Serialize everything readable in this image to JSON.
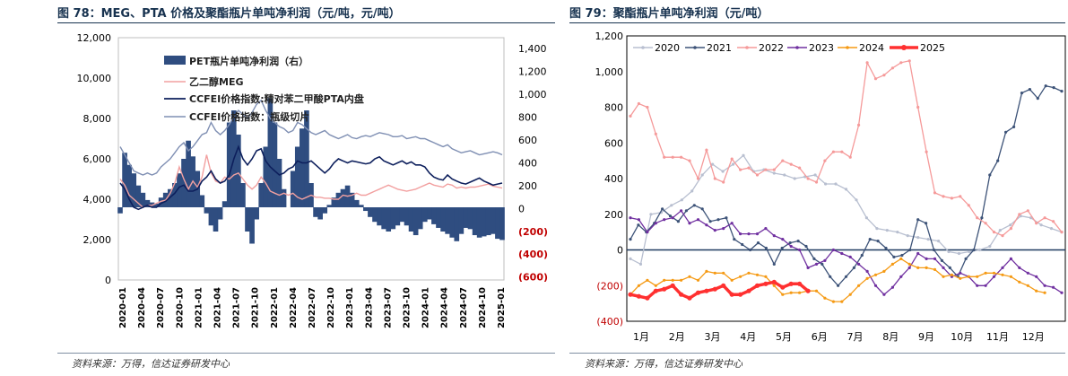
{
  "figures": {
    "fig78_title": "图 78：MEG、PTA 价格及聚酯瓶片单吨净利润（元/吨，元/吨）",
    "fig79_title": "图 79：聚酯瓶片单吨净利润（元/吨）",
    "source_left": "资料来源：万得，信达证券研发中心",
    "source_right": "资料来源：万得，信达证券研发中心"
  },
  "colors": {
    "navy": "#0d1f5c",
    "bar": "#2f4d80",
    "meg": "#f2a0a0",
    "chip": "#7f8fb3",
    "neg": "#c00000",
    "c2020": "#b8bfd0",
    "c2021": "#3d5378",
    "c2022": "#f59a9a",
    "c2023": "#7030a0",
    "c2024": "#f59a14",
    "c2025": "#ff3030"
  },
  "chart_data": [
    {
      "type": "line",
      "title": "MEG、PTA 价格及聚酯瓶片单吨净利润（元/吨，元/吨）",
      "left_axis": {
        "ticks": [
          "12,000",
          "10,000",
          "8,000",
          "6,000",
          "4,000",
          "2,000",
          "0"
        ],
        "range": [
          0,
          12000
        ]
      },
      "right_axis": {
        "ticks": [
          "1,400",
          "1,200",
          "1,000",
          "800",
          "600",
          "400",
          "200",
          "0",
          "(200)",
          "(400)",
          "(600)"
        ],
        "range": [
          -600,
          1400
        ]
      },
      "x_ticks": [
        "2020-01",
        "2020-04",
        "2020-07",
        "2020-10",
        "2021-01",
        "2021-04",
        "2021-07",
        "2021-10",
        "2022-01",
        "2022-04",
        "2022-07",
        "2022-10",
        "2023-01",
        "2023-04",
        "2023-07",
        "2023-10",
        "2024-01",
        "2024-04",
        "2024-07",
        "2024-10",
        "2025-01"
      ],
      "legend": [
        "PET瓶片单吨净利润（右）",
        "乙二醇MEG",
        "CCFEI价格指数:精对苯二甲酸PTA内盘",
        "CCFEI价格指数：瓶级切片"
      ],
      "series": [
        {
          "name": "PET瓶片单吨净利润（右）",
          "kind": "bar",
          "axis": "right",
          "values": [
            -50,
            450,
            350,
            280,
            180,
            120,
            60,
            40,
            30,
            80,
            120,
            150,
            200,
            280,
            400,
            550,
            420,
            300,
            100,
            -50,
            -150,
            -200,
            -100,
            50,
            700,
            800,
            600,
            200,
            -200,
            -300,
            -100,
            200,
            500,
            900,
            700,
            400,
            150,
            0,
            300,
            500,
            650,
            800,
            200,
            -80,
            -100,
            -50,
            20,
            80,
            120,
            150,
            180,
            120,
            60,
            20,
            -30,
            -80,
            -120,
            -150,
            -180,
            -200,
            -180,
            -150,
            -120,
            -150,
            -200,
            -230,
            -180,
            -120,
            -100,
            -140,
            -170,
            -200,
            -220,
            -250,
            -280,
            -220,
            -170,
            -180,
            -230,
            -250,
            -240,
            -230,
            -220,
            -260,
            -270
          ]
        },
        {
          "name": "乙二醇MEG",
          "kind": "line",
          "axis": "left",
          "values": [
            5000,
            4700,
            4200,
            4000,
            3800,
            3600,
            3700,
            3700,
            3800,
            3900,
            3950,
            4300,
            4800,
            5600,
            5000,
            4500,
            4900,
            4600,
            5100,
            6200,
            5300,
            4900,
            4800,
            5100,
            5000,
            5200,
            5300,
            5000,
            4700,
            4500,
            4700,
            5100,
            4800,
            4400,
            4300,
            4200,
            4300,
            4200,
            4300,
            4100,
            4000,
            4100,
            4200,
            4100,
            4100,
            4050,
            4050,
            4000,
            4000,
            4200,
            4150,
            4200,
            4300,
            4200,
            4200,
            4300,
            4400,
            4500,
            4600,
            4700,
            4600,
            4500,
            4450,
            4400,
            4450,
            4500,
            4600,
            4700,
            4800,
            4700,
            4650,
            4600,
            4750,
            4700,
            4550,
            4600,
            4550,
            4600,
            4600,
            4650,
            4700,
            4750,
            4650,
            4600,
            4550
          ]
        },
        {
          "name": "CCFEI价格指数:精对苯二甲酸PTA内盘",
          "kind": "line",
          "axis": "left",
          "values": [
            4800,
            4500,
            4000,
            3600,
            3500,
            3600,
            3700,
            3600,
            3600,
            3800,
            3900,
            4100,
            4300,
            4600,
            4700,
            4400,
            4400,
            4500,
            4900,
            5100,
            5400,
            5000,
            4800,
            4900,
            5200,
            6000,
            6600,
            6000,
            5700,
            6000,
            6400,
            6500,
            5900,
            5600,
            5400,
            5200,
            5300,
            5500,
            5600,
            5900,
            5800,
            5800,
            5900,
            5700,
            5500,
            5300,
            5500,
            5800,
            6000,
            5900,
            5800,
            5900,
            5850,
            5800,
            5750,
            5800,
            6000,
            6100,
            5900,
            5800,
            5700,
            5800,
            5900,
            5750,
            5850,
            5700,
            5700,
            5600,
            5300,
            5100,
            5000,
            4950,
            5200,
            5000,
            4900,
            4800,
            4750,
            4850,
            4950,
            5050,
            4900,
            4800,
            4700,
            4750,
            4800
          ]
        },
        {
          "name": "CCFEI价格指数：瓶级切片",
          "kind": "line",
          "axis": "left",
          "values": [
            6600,
            6200,
            5800,
            5400,
            5300,
            5200,
            5300,
            5200,
            5300,
            5600,
            5800,
            6000,
            6300,
            6600,
            6800,
            6400,
            6600,
            6900,
            7200,
            7300,
            7800,
            7400,
            7200,
            7400,
            7700,
            8100,
            8400,
            8200,
            8000,
            8300,
            8700,
            8900,
            8400,
            8000,
            7800,
            7600,
            7500,
            7300,
            7400,
            7800,
            7700,
            7500,
            7300,
            7200,
            7300,
            7400,
            7200,
            7100,
            7000,
            7100,
            7200,
            7050,
            7000,
            7100,
            7150,
            7100,
            7200,
            7300,
            7250,
            7200,
            7100,
            7100,
            7150,
            7000,
            7050,
            7100,
            7000,
            7000,
            6900,
            6800,
            6700,
            6600,
            6700,
            6500,
            6400,
            6300,
            6350,
            6400,
            6300,
            6200,
            6250,
            6300,
            6350,
            6300,
            6200
          ]
        }
      ]
    },
    {
      "type": "line",
      "title": "聚酯瓶片单吨净利润（元/吨）",
      "y_ticks": [
        "1,200",
        "1,000",
        "800",
        "600",
        "400",
        "200",
        "0",
        "(200)",
        "(400)"
      ],
      "ylim": [
        -400,
        1200
      ],
      "x_labels": [
        "1月",
        "2月",
        "3月",
        "4月",
        "5月",
        "6月",
        "7月",
        "8月",
        "9月",
        "10月",
        "11月",
        "12月"
      ],
      "series": [
        {
          "name": "2020",
          "values": [
            -50,
            -80,
            200,
            210,
            250,
            280,
            330,
            420,
            480,
            440,
            480,
            530,
            440,
            450,
            430,
            420,
            400,
            410,
            420,
            370,
            370,
            340,
            280,
            180,
            120,
            110,
            100,
            80,
            70,
            60,
            50,
            -10,
            -20,
            -10,
            0,
            20,
            110,
            140,
            190,
            180,
            140,
            120,
            100
          ]
        },
        {
          "name": "2021",
          "values": [
            60,
            140,
            100,
            150,
            230,
            190,
            160,
            220,
            250,
            230,
            160,
            170,
            180,
            60,
            30,
            0,
            40,
            10,
            -80,
            10,
            40,
            50,
            20,
            -50,
            -80,
            -150,
            -200,
            -150,
            -100,
            -30,
            60,
            50,
            10,
            -40,
            -30,
            0,
            170,
            150,
            0,
            -60,
            -100,
            -150,
            -50,
            0,
            180,
            420,
            500,
            660,
            690,
            880,
            900,
            850,
            920,
            910,
            890
          ]
        },
        {
          "name": "2022",
          "values": [
            750,
            820,
            800,
            650,
            520,
            520,
            520,
            500,
            400,
            560,
            400,
            380,
            510,
            450,
            460,
            420,
            450,
            450,
            500,
            480,
            460,
            400,
            380,
            500,
            550,
            550,
            520,
            700,
            1050,
            960,
            980,
            1020,
            1050,
            1060,
            800,
            550,
            320,
            300,
            290,
            300,
            250,
            180,
            150,
            100,
            80,
            120,
            200,
            220,
            150,
            180,
            160,
            100
          ]
        },
        {
          "name": "2023",
          "values": [
            180,
            170,
            100,
            150,
            170,
            180,
            220,
            150,
            170,
            140,
            110,
            120,
            150,
            90,
            90,
            90,
            120,
            80,
            60,
            20,
            0,
            -100,
            -80,
            -60,
            0,
            -20,
            -40,
            -80,
            -120,
            -200,
            -250,
            -210,
            -150,
            -100,
            -20,
            -50,
            -50,
            -100,
            -150,
            -130,
            -150,
            -200,
            -200,
            -150,
            -100,
            -50,
            -100,
            -130,
            -150,
            -200,
            -210,
            -240
          ]
        },
        {
          "name": "2024",
          "values": [
            -250,
            -200,
            -170,
            -200,
            -170,
            -170,
            -170,
            -150,
            -170,
            -120,
            -130,
            -130,
            -170,
            -150,
            -130,
            -140,
            -150,
            -200,
            -250,
            -240,
            -240,
            -230,
            -230,
            -270,
            -290,
            -290,
            -250,
            -200,
            -160,
            -140,
            -120,
            -80,
            -50,
            -80,
            -100,
            -100,
            -110,
            -150,
            -140,
            -160,
            -150,
            -150,
            -130,
            -130,
            -140,
            -150,
            -180,
            -200,
            -230,
            -240
          ]
        },
        {
          "name": "2025",
          "values": [
            -250,
            -260,
            -270,
            -230,
            -220,
            -200,
            -250,
            -270,
            -240,
            -230,
            -220,
            -200,
            -250,
            -250,
            -230,
            -200,
            -190,
            -180,
            -210,
            -190,
            -190,
            -230
          ]
        }
      ]
    }
  ]
}
